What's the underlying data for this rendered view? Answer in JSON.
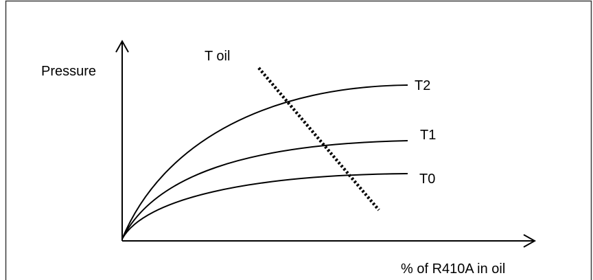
{
  "diagram": {
    "y_axis_label": "Pressure",
    "x_axis_label": "% of R410A in oil",
    "arrow_label": "T oil",
    "curves": [
      {
        "label": "T2"
      },
      {
        "label": "T1"
      },
      {
        "label": "T0"
      }
    ],
    "colors": {
      "background": "#ffffff",
      "stroke": "#000000",
      "border": "#3a3a3a"
    }
  }
}
